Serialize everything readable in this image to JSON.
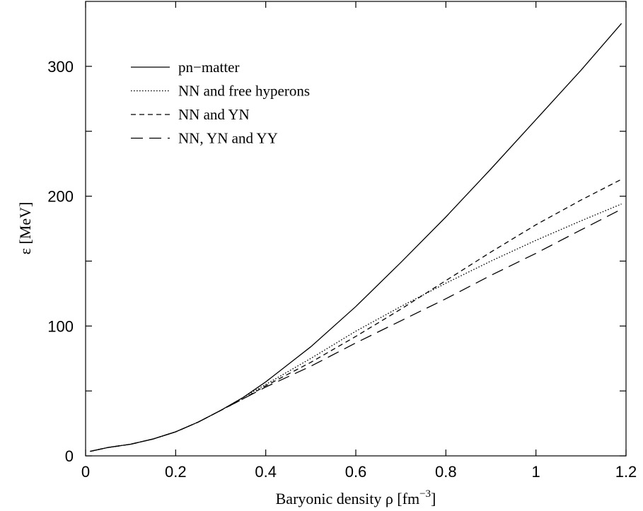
{
  "chart_data": {
    "type": "line",
    "xlabel": {
      "main": "Baryonic density ρ [fm",
      "sup": "−3",
      "close": "]"
    },
    "ylabel": "ε [MeV]",
    "xlim": [
      0,
      1.2
    ],
    "ylim": [
      0,
      350
    ],
    "xticks": [
      {
        "value": 0,
        "label": "0"
      },
      {
        "value": 0.2,
        "label": "0.2"
      },
      {
        "value": 0.4,
        "label": "0.4"
      },
      {
        "value": 0.6,
        "label": "0.6"
      },
      {
        "value": 0.8,
        "label": "0.8"
      },
      {
        "value": 1.0,
        "label": "1"
      },
      {
        "value": 1.2,
        "label": "1.2"
      }
    ],
    "yticks": [
      {
        "value": 0,
        "label": "0"
      },
      {
        "value": 50,
        "label": ""
      },
      {
        "value": 100,
        "label": "100"
      },
      {
        "value": 150,
        "label": ""
      },
      {
        "value": 200,
        "label": "200"
      },
      {
        "value": 250,
        "label": ""
      },
      {
        "value": 300,
        "label": "300"
      }
    ],
    "legend_position": "top-left",
    "grid": false,
    "series": [
      {
        "name": "pn−matter",
        "dash": "solid",
        "x": [
          0.01,
          0.05,
          0.1,
          0.15,
          0.2,
          0.25,
          0.3,
          0.35,
          0.4,
          0.5,
          0.6,
          0.7,
          0.8,
          0.9,
          1.0,
          1.1,
          1.19
        ],
        "y": [
          3.5,
          6.5,
          9,
          13,
          18.5,
          26,
          35,
          45,
          57,
          84,
          115,
          149,
          184,
          221,
          259,
          297,
          333
        ]
      },
      {
        "name": "NN and free hyperons",
        "dash": "dotted",
        "x": [
          0.01,
          0.05,
          0.1,
          0.15,
          0.2,
          0.25,
          0.3,
          0.35,
          0.4,
          0.5,
          0.6,
          0.7,
          0.8,
          0.9,
          1.0,
          1.1,
          1.19
        ],
        "y": [
          3.5,
          6.5,
          9,
          13,
          18.5,
          26,
          35,
          45,
          55,
          75,
          96,
          115,
          133,
          150,
          166,
          181,
          194
        ]
      },
      {
        "name": "NN and YN",
        "dash": "short-dash",
        "x": [
          0.01,
          0.05,
          0.1,
          0.15,
          0.2,
          0.25,
          0.3,
          0.35,
          0.4,
          0.5,
          0.6,
          0.7,
          0.8,
          0.9,
          1.0,
          1.1,
          1.19
        ],
        "y": [
          3.5,
          6.5,
          9,
          13,
          18.5,
          26,
          35,
          44,
          54,
          72,
          92,
          113,
          135,
          157,
          178,
          197,
          213
        ]
      },
      {
        "name": "NN, YN and YY",
        "dash": "long-dash",
        "x": [
          0.01,
          0.05,
          0.1,
          0.15,
          0.2,
          0.25,
          0.3,
          0.35,
          0.4,
          0.5,
          0.6,
          0.7,
          0.8,
          0.9,
          1.0,
          1.1,
          1.19
        ],
        "y": [
          3.5,
          6.5,
          9,
          13,
          18.5,
          26,
          35,
          44,
          53,
          69,
          87,
          104,
          121,
          139,
          156,
          174,
          190
        ]
      }
    ]
  }
}
